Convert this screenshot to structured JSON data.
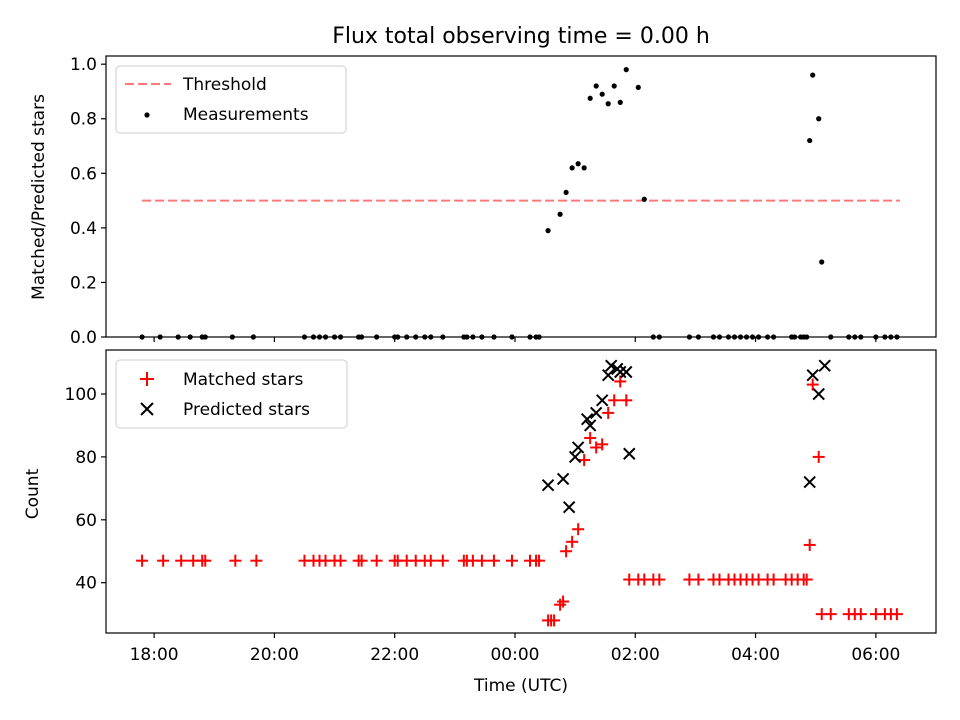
{
  "chart_data": [
    {
      "type": "scatter",
      "title": "Flux total observing time = 0.00 h",
      "xlabel": "",
      "ylabel": "Matched/Predicted stars",
      "ylim": [
        0,
        1.03
      ],
      "yticks": [
        0.0,
        0.2,
        0.4,
        0.6,
        0.8,
        1.0
      ],
      "ytick_labels": [
        "0.0",
        "0.2",
        "0.4",
        "0.6",
        "0.8",
        "1.0"
      ],
      "x_axis": "time (hours from 00:00 UTC)",
      "xlim": [
        -6.8,
        7.0
      ],
      "xtick_values": [
        -6,
        -4,
        -2,
        0,
        2,
        4,
        6
      ],
      "grid": false,
      "legend_position": "upper-left",
      "threshold": {
        "name": "Threshold",
        "value": 0.5,
        "x_range": [
          -6.2,
          6.4
        ],
        "color": "#ff7777"
      },
      "series": [
        {
          "name": "Measurements",
          "color": "#000000",
          "x": [
            -6.2,
            -5.9,
            -5.6,
            -5.4,
            -5.2,
            -5.15,
            -4.7,
            -4.35,
            -3.5,
            -3.35,
            -3.25,
            -3.15,
            -3.0,
            -2.9,
            -2.6,
            -2.55,
            -2.3,
            -2.0,
            -1.95,
            -1.8,
            -1.65,
            -1.5,
            -1.4,
            -1.2,
            -0.85,
            -0.8,
            -0.7,
            -0.55,
            -0.35,
            -0.05,
            0.25,
            0.35,
            0.4,
            0.55,
            0.75,
            0.85,
            0.95,
            1.05,
            1.15,
            1.25,
            1.35,
            1.45,
            1.55,
            1.65,
            1.75,
            1.85,
            2.05,
            2.15,
            2.3,
            2.4,
            2.9,
            3.05,
            3.3,
            3.4,
            3.55,
            3.65,
            3.75,
            3.85,
            3.95,
            4.05,
            4.2,
            4.3,
            4.6,
            4.65,
            4.75,
            4.8,
            4.85,
            4.9,
            4.95,
            5.05,
            5.1,
            5.25,
            5.55,
            5.65,
            5.75,
            6.0,
            6.15,
            6.25,
            6.35
          ],
          "y": [
            0,
            0,
            0,
            0,
            0,
            0,
            0,
            0,
            0,
            0,
            0,
            0,
            0,
            0,
            0,
            0,
            0,
            0,
            0,
            0,
            0,
            0,
            0,
            0,
            0,
            0,
            0,
            0,
            0,
            0,
            0,
            0,
            0,
            0.39,
            0.45,
            0.53,
            0.62,
            0.635,
            0.62,
            0.875,
            0.92,
            0.89,
            0.855,
            0.92,
            0.86,
            0.98,
            0.915,
            0.505,
            0,
            0,
            0,
            0,
            0,
            0,
            0,
            0,
            0,
            0,
            0,
            0,
            0,
            0,
            0,
            0,
            0,
            0,
            0,
            0.72,
            0.96,
            0.8,
            0.275,
            0,
            0,
            0,
            0,
            0,
            0,
            0,
            0
          ]
        }
      ]
    },
    {
      "type": "scatter",
      "title": "",
      "xlabel": "Time (UTC)",
      "ylabel": "Count",
      "ylim": [
        24,
        114
      ],
      "yticks": [
        40,
        60,
        80,
        100
      ],
      "ytick_labels": [
        "40",
        "60",
        "80",
        "100"
      ],
      "x_axis": "time (hours from 00:00 UTC)",
      "xlim": [
        -6.8,
        7.0
      ],
      "xtick_values": [
        -6,
        -4,
        -2,
        0,
        2,
        4,
        6
      ],
      "xtick_labels": [
        "18:00",
        "20:00",
        "22:00",
        "00:00",
        "02:00",
        "04:00",
        "06:00"
      ],
      "grid": false,
      "legend_position": "upper-left",
      "series": [
        {
          "name": "Matched stars",
          "color": "#ff0000",
          "marker": "plus",
          "x": [
            -6.2,
            -5.85,
            -5.55,
            -5.35,
            -5.2,
            -5.15,
            -4.65,
            -4.3,
            -3.5,
            -3.35,
            -3.25,
            -3.15,
            -3.0,
            -2.9,
            -2.6,
            -2.55,
            -2.3,
            -2.0,
            -1.95,
            -1.8,
            -1.65,
            -1.5,
            -1.4,
            -1.2,
            -0.85,
            -0.8,
            -0.7,
            -0.55,
            -0.35,
            -0.05,
            0.25,
            0.35,
            0.4,
            0.55,
            0.6,
            0.65,
            0.75,
            0.8,
            0.85,
            0.95,
            1.05,
            1.15,
            1.25,
            1.35,
            1.45,
            1.55,
            1.65,
            1.75,
            1.85,
            1.9,
            2.05,
            2.15,
            2.3,
            2.4,
            2.9,
            3.05,
            3.3,
            3.4,
            3.55,
            3.65,
            3.75,
            3.85,
            3.95,
            4.05,
            4.2,
            4.3,
            4.5,
            4.6,
            4.7,
            4.8,
            4.85,
            4.9,
            4.95,
            5.05,
            5.1,
            5.25,
            5.55,
            5.65,
            5.75,
            6.0,
            6.15,
            6.25,
            6.35
          ],
          "y": [
            47,
            47,
            47,
            47,
            47,
            47,
            47,
            47,
            47,
            47,
            47,
            47,
            47,
            47,
            47,
            47,
            47,
            47,
            47,
            47,
            47,
            47,
            47,
            47,
            47,
            47,
            47,
            47,
            47,
            47,
            47,
            47,
            47,
            28,
            28,
            28,
            33,
            34,
            50,
            53,
            57,
            79,
            86,
            83,
            84,
            94,
            98,
            104,
            98,
            41,
            41,
            41,
            41,
            41,
            41,
            41,
            41,
            41,
            41,
            41,
            41,
            41,
            41,
            41,
            41,
            41,
            41,
            41,
            41,
            41,
            41,
            52,
            103,
            80,
            30,
            30,
            30,
            30,
            30,
            30,
            30,
            30,
            30
          ]
        },
        {
          "name": "Predicted stars",
          "color": "#000000",
          "marker": "x",
          "x": [
            0.55,
            0.8,
            0.9,
            1.0,
            1.05,
            1.2,
            1.25,
            1.35,
            1.45,
            1.55,
            1.6,
            1.7,
            1.75,
            1.85,
            1.9,
            4.9,
            4.95,
            5.05,
            5.15
          ],
          "y": [
            71,
            73,
            64,
            80,
            83,
            92,
            90,
            94,
            98,
            106,
            109,
            108,
            107,
            107,
            81,
            72,
            106,
            100,
            109
          ]
        }
      ]
    }
  ],
  "legend_threshold_label": "Threshold",
  "legend_measurements_label": "Measurements",
  "legend_matched_label": "Matched stars",
  "legend_predicted_label": "Predicted stars"
}
